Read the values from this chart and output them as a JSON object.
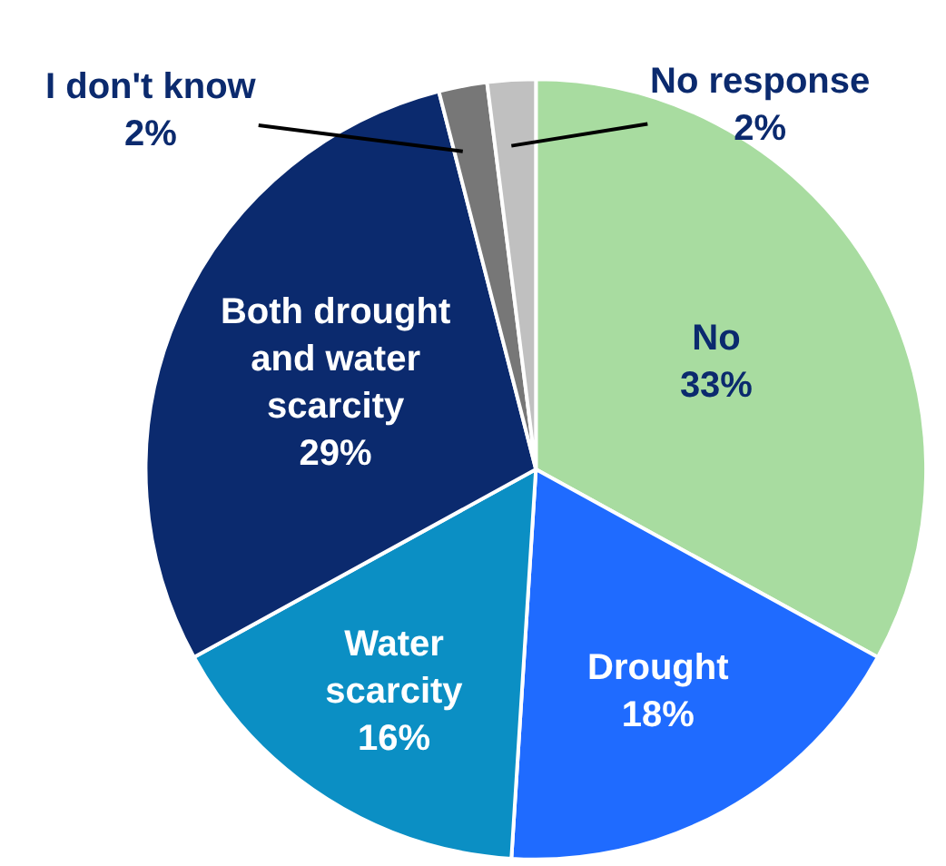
{
  "chart_data": {
    "type": "pie",
    "categories": [
      "No",
      "Drought",
      "Water scarcity",
      "Both drought and water scarcity",
      "I don't know",
      "No response"
    ],
    "values": [
      33,
      18,
      16,
      29,
      2,
      2
    ],
    "value_labels": [
      "33%",
      "18%",
      "16%",
      "29%",
      "2%",
      "2%"
    ],
    "colors": [
      "#a8dca0",
      "#1f6bff",
      "#0b8fc4",
      "#0b2a6e",
      "#777777",
      "#c0c0c0"
    ],
    "data_labels": true,
    "legend": false
  }
}
